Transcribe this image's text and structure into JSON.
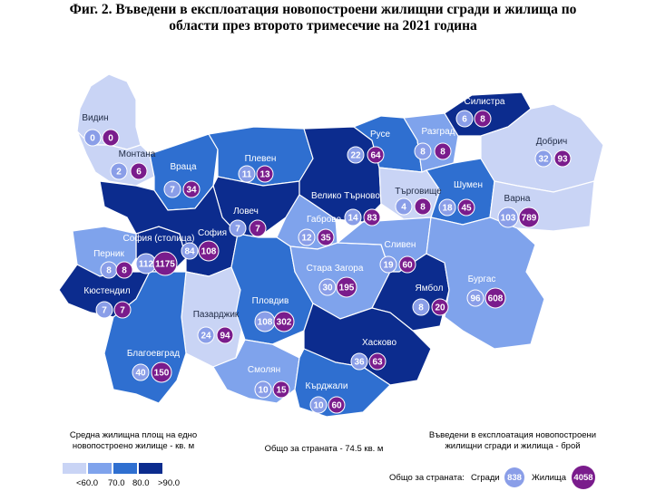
{
  "title_line1": "Фиг. 2. Въведени в експлоатация новопостроени жилищни сгради и жилища по",
  "title_line2": "области през второто тримесечие на 2021 година",
  "colors": {
    "class1": "#c9d4f5",
    "class2": "#7fa3ec",
    "class3": "#2f6fd0",
    "class4": "#0c2c8e",
    "buildings_circle": "#8a9ee8",
    "dwellings_circle": "#7a1c8c"
  },
  "regions": [
    {
      "name": "Видин",
      "buildings": 0,
      "dwellings": 0,
      "avg_class": 1
    },
    {
      "name": "Монтана",
      "buildings": 2,
      "dwellings": 6,
      "avg_class": 1
    },
    {
      "name": "Враца",
      "buildings": 7,
      "dwellings": 34,
      "avg_class": 3
    },
    {
      "name": "Плевен",
      "buildings": 11,
      "dwellings": 13,
      "avg_class": 3
    },
    {
      "name": "Ловеч",
      "buildings": 7,
      "dwellings": 7,
      "avg_class": 4
    },
    {
      "name": "Велико Търново",
      "buildings": 14,
      "dwellings": 83,
      "avg_class": 4
    },
    {
      "name": "Габрово",
      "buildings": 12,
      "dwellings": 35,
      "avg_class": 2
    },
    {
      "name": "Русе",
      "buildings": 22,
      "dwellings": 64,
      "avg_class": 3
    },
    {
      "name": "Разград",
      "buildings": 8,
      "dwellings": 8,
      "avg_class": 2
    },
    {
      "name": "Силистра",
      "buildings": 6,
      "dwellings": 8,
      "avg_class": 4
    },
    {
      "name": "Търговище",
      "buildings": 4,
      "dwellings": 8,
      "avg_class": 1
    },
    {
      "name": "Шумен",
      "buildings": 18,
      "dwellings": 45,
      "avg_class": 3
    },
    {
      "name": "Добрич",
      "buildings": 32,
      "dwellings": 93,
      "avg_class": 1
    },
    {
      "name": "Варна",
      "buildings": 103,
      "dwellings": 789,
      "avg_class": 1
    },
    {
      "name": "София (столица)",
      "buildings": 112,
      "dwellings": 1175,
      "avg_class": 4
    },
    {
      "name": "София",
      "buildings": 84,
      "dwellings": 108,
      "avg_class": 4
    },
    {
      "name": "Перник",
      "buildings": 8,
      "dwellings": 8,
      "avg_class": 2
    },
    {
      "name": "Кюстендил",
      "buildings": 7,
      "dwellings": 7,
      "avg_class": 4
    },
    {
      "name": "Пазарджик",
      "buildings": 24,
      "dwellings": 94,
      "avg_class": 1
    },
    {
      "name": "Пловдив",
      "buildings": 108,
      "dwellings": 302,
      "avg_class": 3
    },
    {
      "name": "Стара Загора",
      "buildings": 30,
      "dwellings": 195,
      "avg_class": 2
    },
    {
      "name": "Сливен",
      "buildings": 19,
      "dwellings": 60,
      "avg_class": 2
    },
    {
      "name": "Ямбол",
      "buildings": 8,
      "dwellings": 20,
      "avg_class": 4
    },
    {
      "name": "Бургас",
      "buildings": 96,
      "dwellings": 608,
      "avg_class": 2
    },
    {
      "name": "Хасково",
      "buildings": 36,
      "dwellings": 63,
      "avg_class": 4
    },
    {
      "name": "Благоевград",
      "buildings": 40,
      "dwellings": 150,
      "avg_class": 3
    },
    {
      "name": "Смолян",
      "buildings": 10,
      "dwellings": 15,
      "avg_class": 2
    },
    {
      "name": "Кърджали",
      "buildings": 10,
      "dwellings": 60,
      "avg_class": 3
    }
  ],
  "legend": {
    "area_title_line1": "Средна жилищна площ на едно",
    "area_title_line2": "новопостроено жилище - кв. м",
    "classes": [
      "<60.0",
      "70.0",
      "80.0",
      ">90.0"
    ],
    "country_area": "Общо за страната - 74.5 кв. м",
    "count_title_line1": "Въведени в експлоатация новопостроени",
    "count_title_line2": "жилищни сгради и жилища - брой",
    "country_total_label": "Общо за страната:",
    "buildings_label": "Сгради",
    "buildings_total": "838",
    "dwellings_label": "Жилища",
    "dwellings_total": "4058"
  }
}
